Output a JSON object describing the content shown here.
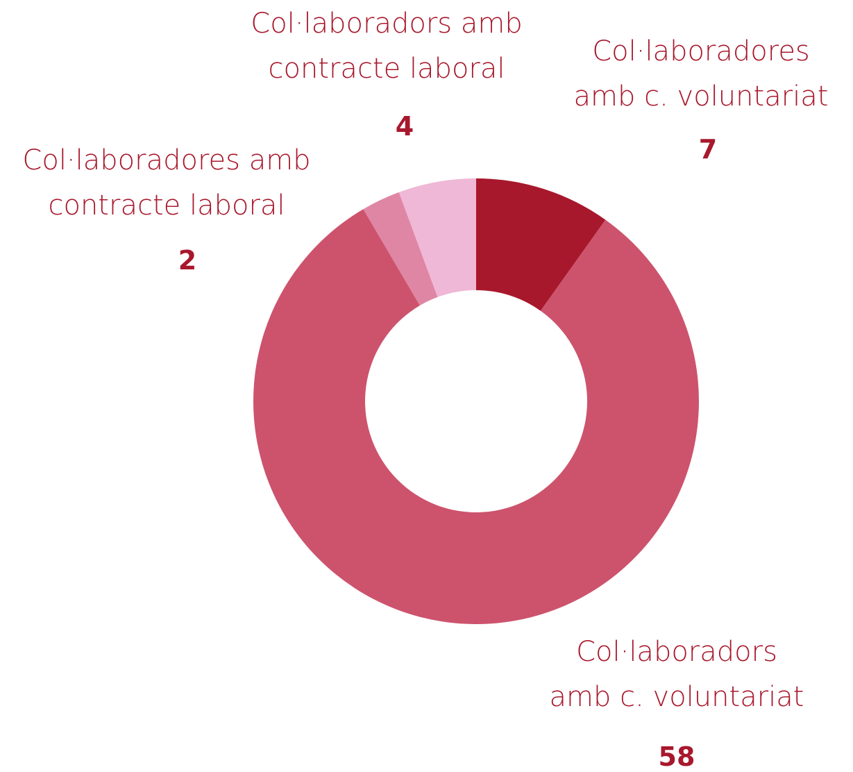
{
  "chart_data": {
    "type": "donut",
    "categories": [
      "Col·laboradores\namb c. voluntariat",
      "Col·laboradors\namb c. voluntariat",
      "Col·laboradores amb\ncontracte laboral",
      "Col·laboradors amb\ncontracte laboral"
    ],
    "values": [
      7,
      58,
      2,
      4
    ],
    "colors": [
      "#a8182c",
      "#cd536d",
      "#e086a5",
      "#efb8d6"
    ],
    "label_color": "#a8182c"
  }
}
